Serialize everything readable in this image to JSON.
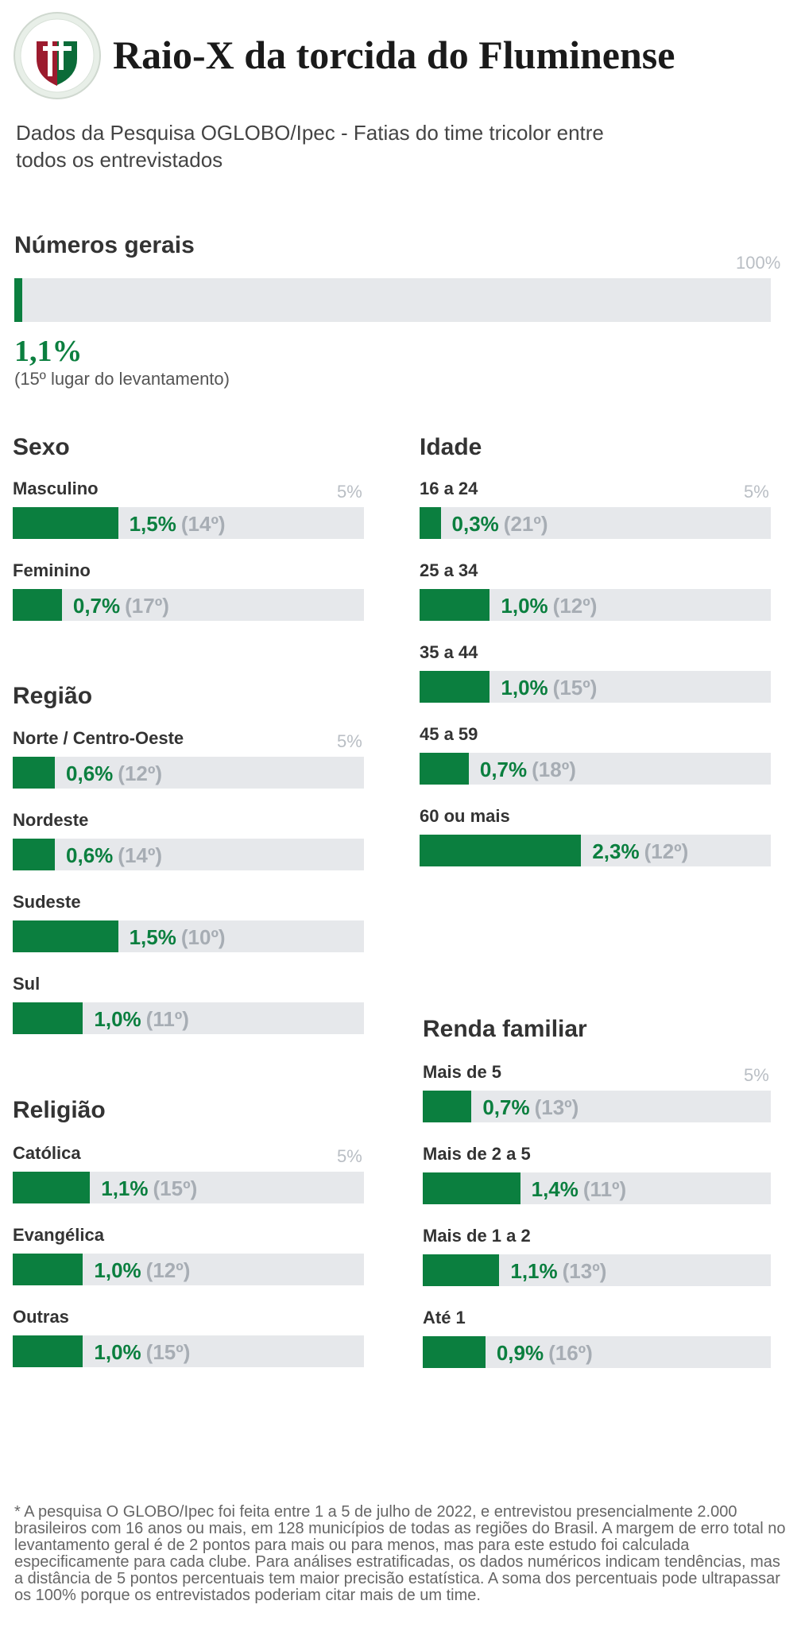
{
  "header": {
    "title": "Raio-X da torcida do Fluminense",
    "subtitle": "Dados da Pesquisa OGLOBO/Ipec - Fatias do time tricolor entre todos os entrevistados"
  },
  "colors": {
    "accent": "#0b7f3f",
    "track": "#e6e8eb",
    "rank": "#a7adb4",
    "logo_red": "#9c1b2e"
  },
  "overall": {
    "title": "Números gerais",
    "scale_label": "100%",
    "value": 1.1,
    "value_label": "1,1%",
    "note": "(15º lugar do levantamento)"
  },
  "chart_data": [
    {
      "type": "bar",
      "title": "Sexo",
      "scale_label": "5%",
      "xlim": [
        0,
        5
      ],
      "categories": [
        "Masculino",
        "Feminino"
      ],
      "values": [
        1.5,
        0.7
      ],
      "value_labels": [
        "1,5%",
        "0,7%"
      ],
      "ranks": [
        "(14º)",
        "(17º)"
      ]
    },
    {
      "type": "bar",
      "title": "Região",
      "scale_label": "5%",
      "xlim": [
        0,
        5
      ],
      "categories": [
        "Norte / Centro-Oeste",
        "Nordeste",
        "Sudeste",
        "Sul"
      ],
      "values": [
        0.6,
        0.6,
        1.5,
        1.0
      ],
      "value_labels": [
        "0,6%",
        "0,6%",
        "1,5%",
        "1,0%"
      ],
      "ranks": [
        "(12º)",
        "(14º)",
        "(10º)",
        "(11º)"
      ]
    },
    {
      "type": "bar",
      "title": "Religião",
      "scale_label": "5%",
      "xlim": [
        0,
        5
      ],
      "categories": [
        "Católica",
        "Evangélica",
        "Outras"
      ],
      "values": [
        1.1,
        1.0,
        1.0
      ],
      "value_labels": [
        "1,1%",
        "1,0%",
        "1,0%"
      ],
      "ranks": [
        "(15º)",
        "(12º)",
        "(15º)"
      ]
    },
    {
      "type": "bar",
      "title": "Idade",
      "scale_label": "5%",
      "xlim": [
        0,
        5
      ],
      "categories": [
        "16 a 24",
        "25 a 34",
        "35 a 44",
        "45 a 59",
        "60 ou mais"
      ],
      "values": [
        0.3,
        1.0,
        1.0,
        0.7,
        2.3
      ],
      "value_labels": [
        "0,3%",
        "1,0%",
        "1,0%",
        "0,7%",
        "2,3%"
      ],
      "ranks": [
        "(21º)",
        "(12º)",
        "(15º)",
        "(18º)",
        "(12º)"
      ]
    },
    {
      "type": "bar",
      "title": "Renda familiar",
      "scale_label": "5%",
      "xlim": [
        0,
        5
      ],
      "categories": [
        "Mais de 5",
        "Mais de 2 a 5",
        "Mais de 1 a 2",
        "Até 1"
      ],
      "values": [
        0.7,
        1.4,
        1.1,
        0.9
      ],
      "value_labels": [
        "0,7%",
        "1,4%",
        "1,1%",
        "0,9%"
      ],
      "ranks": [
        "(13º)",
        "(11º)",
        "(13º)",
        "(16º)"
      ]
    }
  ],
  "footnote": "* A pesquisa O GLOBO/Ipec foi feita entre 1 a 5 de julho de 2022, e entrevistou presencialmente 2.000 brasileiros com 16 anos ou mais, em 128 municípios de todas as regiões do Brasil. A margem de erro total no levantamento geral é de 2 pontos para mais ou para menos, mas para este estudo foi calculada especificamente para cada clube. Para análises estratificadas, os dados numéricos indicam tendências, mas a distância de 5 pontos percentuais tem maior precisão estatística. A soma dos percentuais pode ultrapassar os 100% porque os entrevistados poderiam citar mais de um time."
}
